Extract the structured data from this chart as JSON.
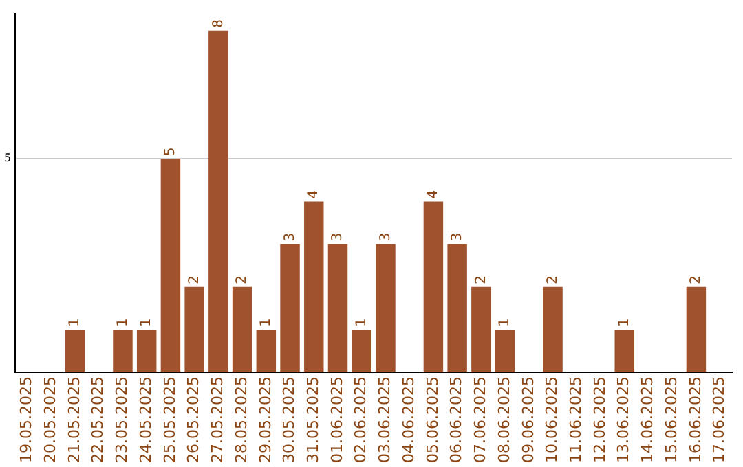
{
  "chart_data": {
    "type": "bar",
    "categories": [
      "19.05.2025",
      "20.05.2025",
      "21.05.2025",
      "22.05.2025",
      "23.05.2025",
      "24.05.2025",
      "25.05.2025",
      "26.05.2025",
      "27.05.2025",
      "28.05.2025",
      "29.05.2025",
      "30.05.2025",
      "31.05.2025",
      "01.06.2025",
      "02.06.2025",
      "03.06.2025",
      "04.06.2025",
      "05.06.2025",
      "06.06.2025",
      "07.06.2025",
      "08.06.2025",
      "09.06.2025",
      "10.06.2025",
      "11.06.2025",
      "12.06.2025",
      "13.06.2025",
      "14.06.2025",
      "15.06.2025",
      "16.06.2025",
      "17.06.2025"
    ],
    "values": [
      0,
      0,
      1,
      0,
      1,
      1,
      5,
      2,
      8,
      2,
      1,
      3,
      4,
      3,
      1,
      3,
      0,
      4,
      3,
      2,
      1,
      0,
      2,
      0,
      0,
      1,
      0,
      0,
      2,
      0
    ],
    "value_labels": [
      null,
      null,
      "1",
      null,
      "1",
      "1",
      "5",
      "2",
      "8",
      "2",
      "1",
      "3",
      "4",
      "3",
      "1",
      "3",
      null,
      "4",
      "3",
      "2",
      "1",
      null,
      "2",
      null,
      null,
      "1",
      null,
      null,
      "2",
      null
    ],
    "color": "#a0522d",
    "ylim": [
      0,
      8.4
    ],
    "yticks": [
      5
    ],
    "grid": "y",
    "legend": false
  }
}
